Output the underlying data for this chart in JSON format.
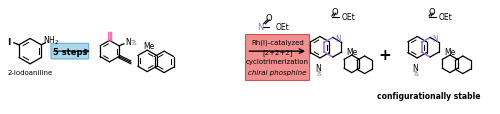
{
  "figsize": [
    5.0,
    1.15
  ],
  "dpi": 100,
  "bg_color": "#ffffff",
  "steps_box_color": "#a8d8ea",
  "steps_box_text": "5 steps",
  "reaction_box_color": "#f08080",
  "label_2iodoaniline": "2-iodoaniline",
  "label_configurationally": "configurationally stable",
  "pink_color": "#ff69b4",
  "purple_color": "#9370db",
  "gray_color": "#808080"
}
